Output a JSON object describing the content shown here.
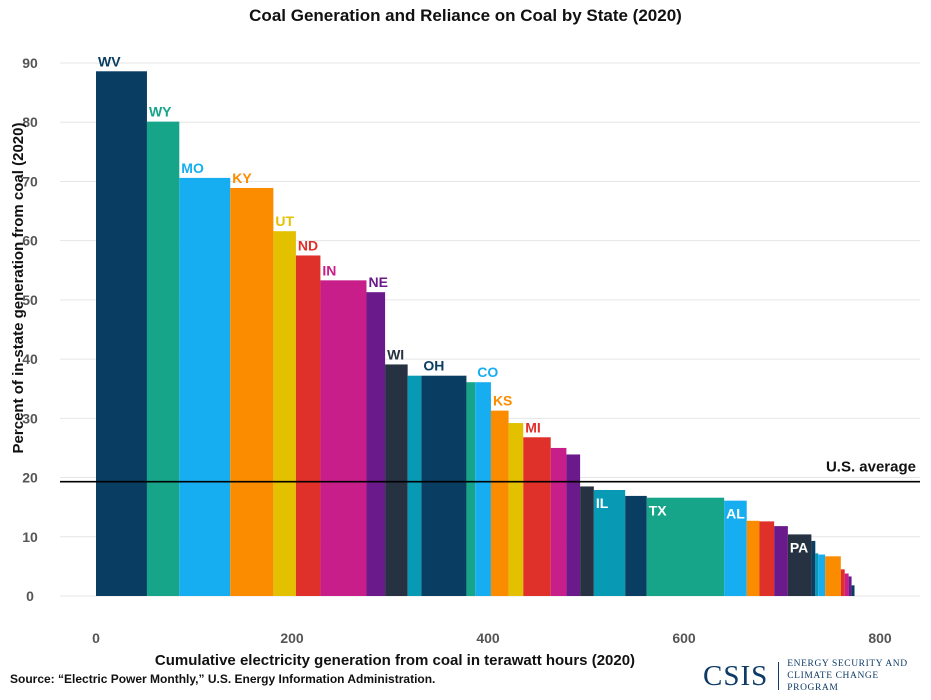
{
  "chart_data": {
    "type": "bar",
    "variant": "variable-width (marimekko-style)",
    "title": "Coal Generation and Reliance on Coal by State (2020)",
    "xlabel": "Cumulative electricity generation from coal in terawatt hours (2020)",
    "ylabel": "Percent of in-state generation from coal (2020)",
    "xlim": [
      0,
      800
    ],
    "ylim": [
      0,
      90
    ],
    "xticks": [
      0,
      200,
      400,
      600,
      800
    ],
    "yticks": [
      0,
      10,
      20,
      30,
      40,
      50,
      60,
      70,
      80,
      90
    ],
    "grid": true,
    "reference_line": {
      "label": "U.S. average",
      "value": 19.3
    },
    "bars": [
      {
        "label": "WV",
        "x0": 0,
        "x1": 52,
        "value": 88.6,
        "color": "#0a3d62"
      },
      {
        "label": "WY",
        "x0": 52,
        "x1": 85,
        "value": 80.1,
        "color": "#17a589"
      },
      {
        "label": "MO",
        "x0": 85,
        "x1": 137,
        "value": 70.6,
        "color": "#16aef0"
      },
      {
        "label": "KY",
        "x0": 137,
        "x1": 181,
        "value": 68.9,
        "color": "#fb8c00"
      },
      {
        "label": "UT",
        "x0": 181,
        "x1": 204,
        "value": 61.6,
        "color": "#e3c000"
      },
      {
        "label": "ND",
        "x0": 204,
        "x1": 229,
        "value": 57.5,
        "color": "#e0302a"
      },
      {
        "label": "IN",
        "x0": 229,
        "x1": 276,
        "value": 53.3,
        "color": "#c71e8a"
      },
      {
        "label": "NE",
        "x0": 276,
        "x1": 295,
        "value": 51.3,
        "color": "#6a1a8a"
      },
      {
        "label": "WI",
        "x0": 295,
        "x1": 318,
        "value": 39.1,
        "color": "#263141"
      },
      {
        "label": "",
        "x0": 318,
        "x1": 332,
        "value": 37.2,
        "color": "#0899b4"
      },
      {
        "label": "OH",
        "x0": 332,
        "x1": 378,
        "value": 37.2,
        "color": "#0a3d62"
      },
      {
        "label": "",
        "x0": 378,
        "x1": 387,
        "value": 36.1,
        "color": "#17a589"
      },
      {
        "label": "CO",
        "x0": 387,
        "x1": 403,
        "value": 36.1,
        "color": "#16aef0"
      },
      {
        "label": "KS",
        "x0": 403,
        "x1": 421,
        "value": 31.3,
        "color": "#fb8c00"
      },
      {
        "label": "",
        "x0": 421,
        "x1": 436,
        "value": 29.2,
        "color": "#e3c000"
      },
      {
        "label": "MI",
        "x0": 436,
        "x1": 464,
        "value": 26.8,
        "color": "#e0302a"
      },
      {
        "label": "",
        "x0": 464,
        "x1": 480,
        "value": 25.0,
        "color": "#c71e8a"
      },
      {
        "label": "",
        "x0": 480,
        "x1": 494,
        "value": 23.9,
        "color": "#6a1a8a"
      },
      {
        "label": "",
        "x0": 494,
        "x1": 508,
        "value": 18.5,
        "color": "#263141"
      },
      {
        "label": "IL",
        "x0": 508,
        "x1": 540,
        "value": 17.9,
        "color": "#0899b4"
      },
      {
        "label": "",
        "x0": 540,
        "x1": 562,
        "value": 16.9,
        "color": "#0a3d62"
      },
      {
        "label": "TX",
        "x0": 562,
        "x1": 641,
        "value": 16.6,
        "color": "#17a589"
      },
      {
        "label": "AL",
        "x0": 641,
        "x1": 664,
        "value": 16.1,
        "color": "#16aef0"
      },
      {
        "label": "",
        "x0": 664,
        "x1": 677,
        "value": 12.7,
        "color": "#fb8c00"
      },
      {
        "label": "",
        "x0": 677,
        "x1": 692,
        "value": 12.6,
        "color": "#e0302a"
      },
      {
        "label": "",
        "x0": 692,
        "x1": 706,
        "value": 11.8,
        "color": "#6a1a8a"
      },
      {
        "label": "PA",
        "x0": 706,
        "x1": 730,
        "value": 10.4,
        "color": "#263141"
      },
      {
        "label": "",
        "x0": 730,
        "x1": 734,
        "value": 9.3,
        "color": "#0a3d62"
      },
      {
        "label": "",
        "x0": 734,
        "x1": 737,
        "value": 7.2,
        "color": "#0899b4"
      },
      {
        "label": "",
        "x0": 737,
        "x1": 744,
        "value": 7.0,
        "color": "#16aef0"
      },
      {
        "label": "",
        "x0": 744,
        "x1": 760,
        "value": 6.7,
        "color": "#fb8c00"
      },
      {
        "label": "",
        "x0": 760,
        "x1": 764,
        "value": 4.5,
        "color": "#e0302a"
      },
      {
        "label": "",
        "x0": 764,
        "x1": 768,
        "value": 3.8,
        "color": "#c71e8a"
      },
      {
        "label": "",
        "x0": 768,
        "x1": 771,
        "value": 3.3,
        "color": "#6a1a8a"
      },
      {
        "label": "",
        "x0": 771,
        "x1": 774,
        "value": 1.8,
        "color": "#0a3d62"
      }
    ]
  },
  "footer": {
    "source": "Source: “Electric Power Monthly,” U.S. Energy Information Administration.",
    "logo": "CSIS",
    "program_line1": "ENERGY SECURITY AND",
    "program_line2": "CLIMATE CHANGE PROGRAM"
  }
}
